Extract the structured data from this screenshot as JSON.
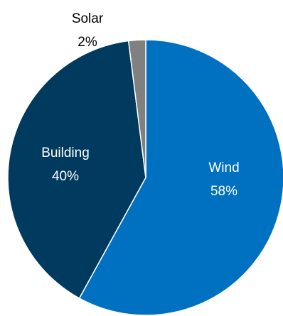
{
  "chart_data": {
    "type": "pie",
    "title": "",
    "start_angle_deg": 0,
    "direction": "clockwise",
    "slices": [
      {
        "label": "Wind",
        "value": 58,
        "percent_label": "58%",
        "color": "#0070C0",
        "label_color": "#FFFFFF"
      },
      {
        "label": "Building",
        "value": 40,
        "percent_label": "40%",
        "color": "#003A5E",
        "label_color": "#FFFFFF"
      },
      {
        "label": "Solar",
        "value": 2,
        "percent_label": "2%",
        "color": "#808080",
        "label_color": "#000000"
      }
    ],
    "legend": "none"
  }
}
